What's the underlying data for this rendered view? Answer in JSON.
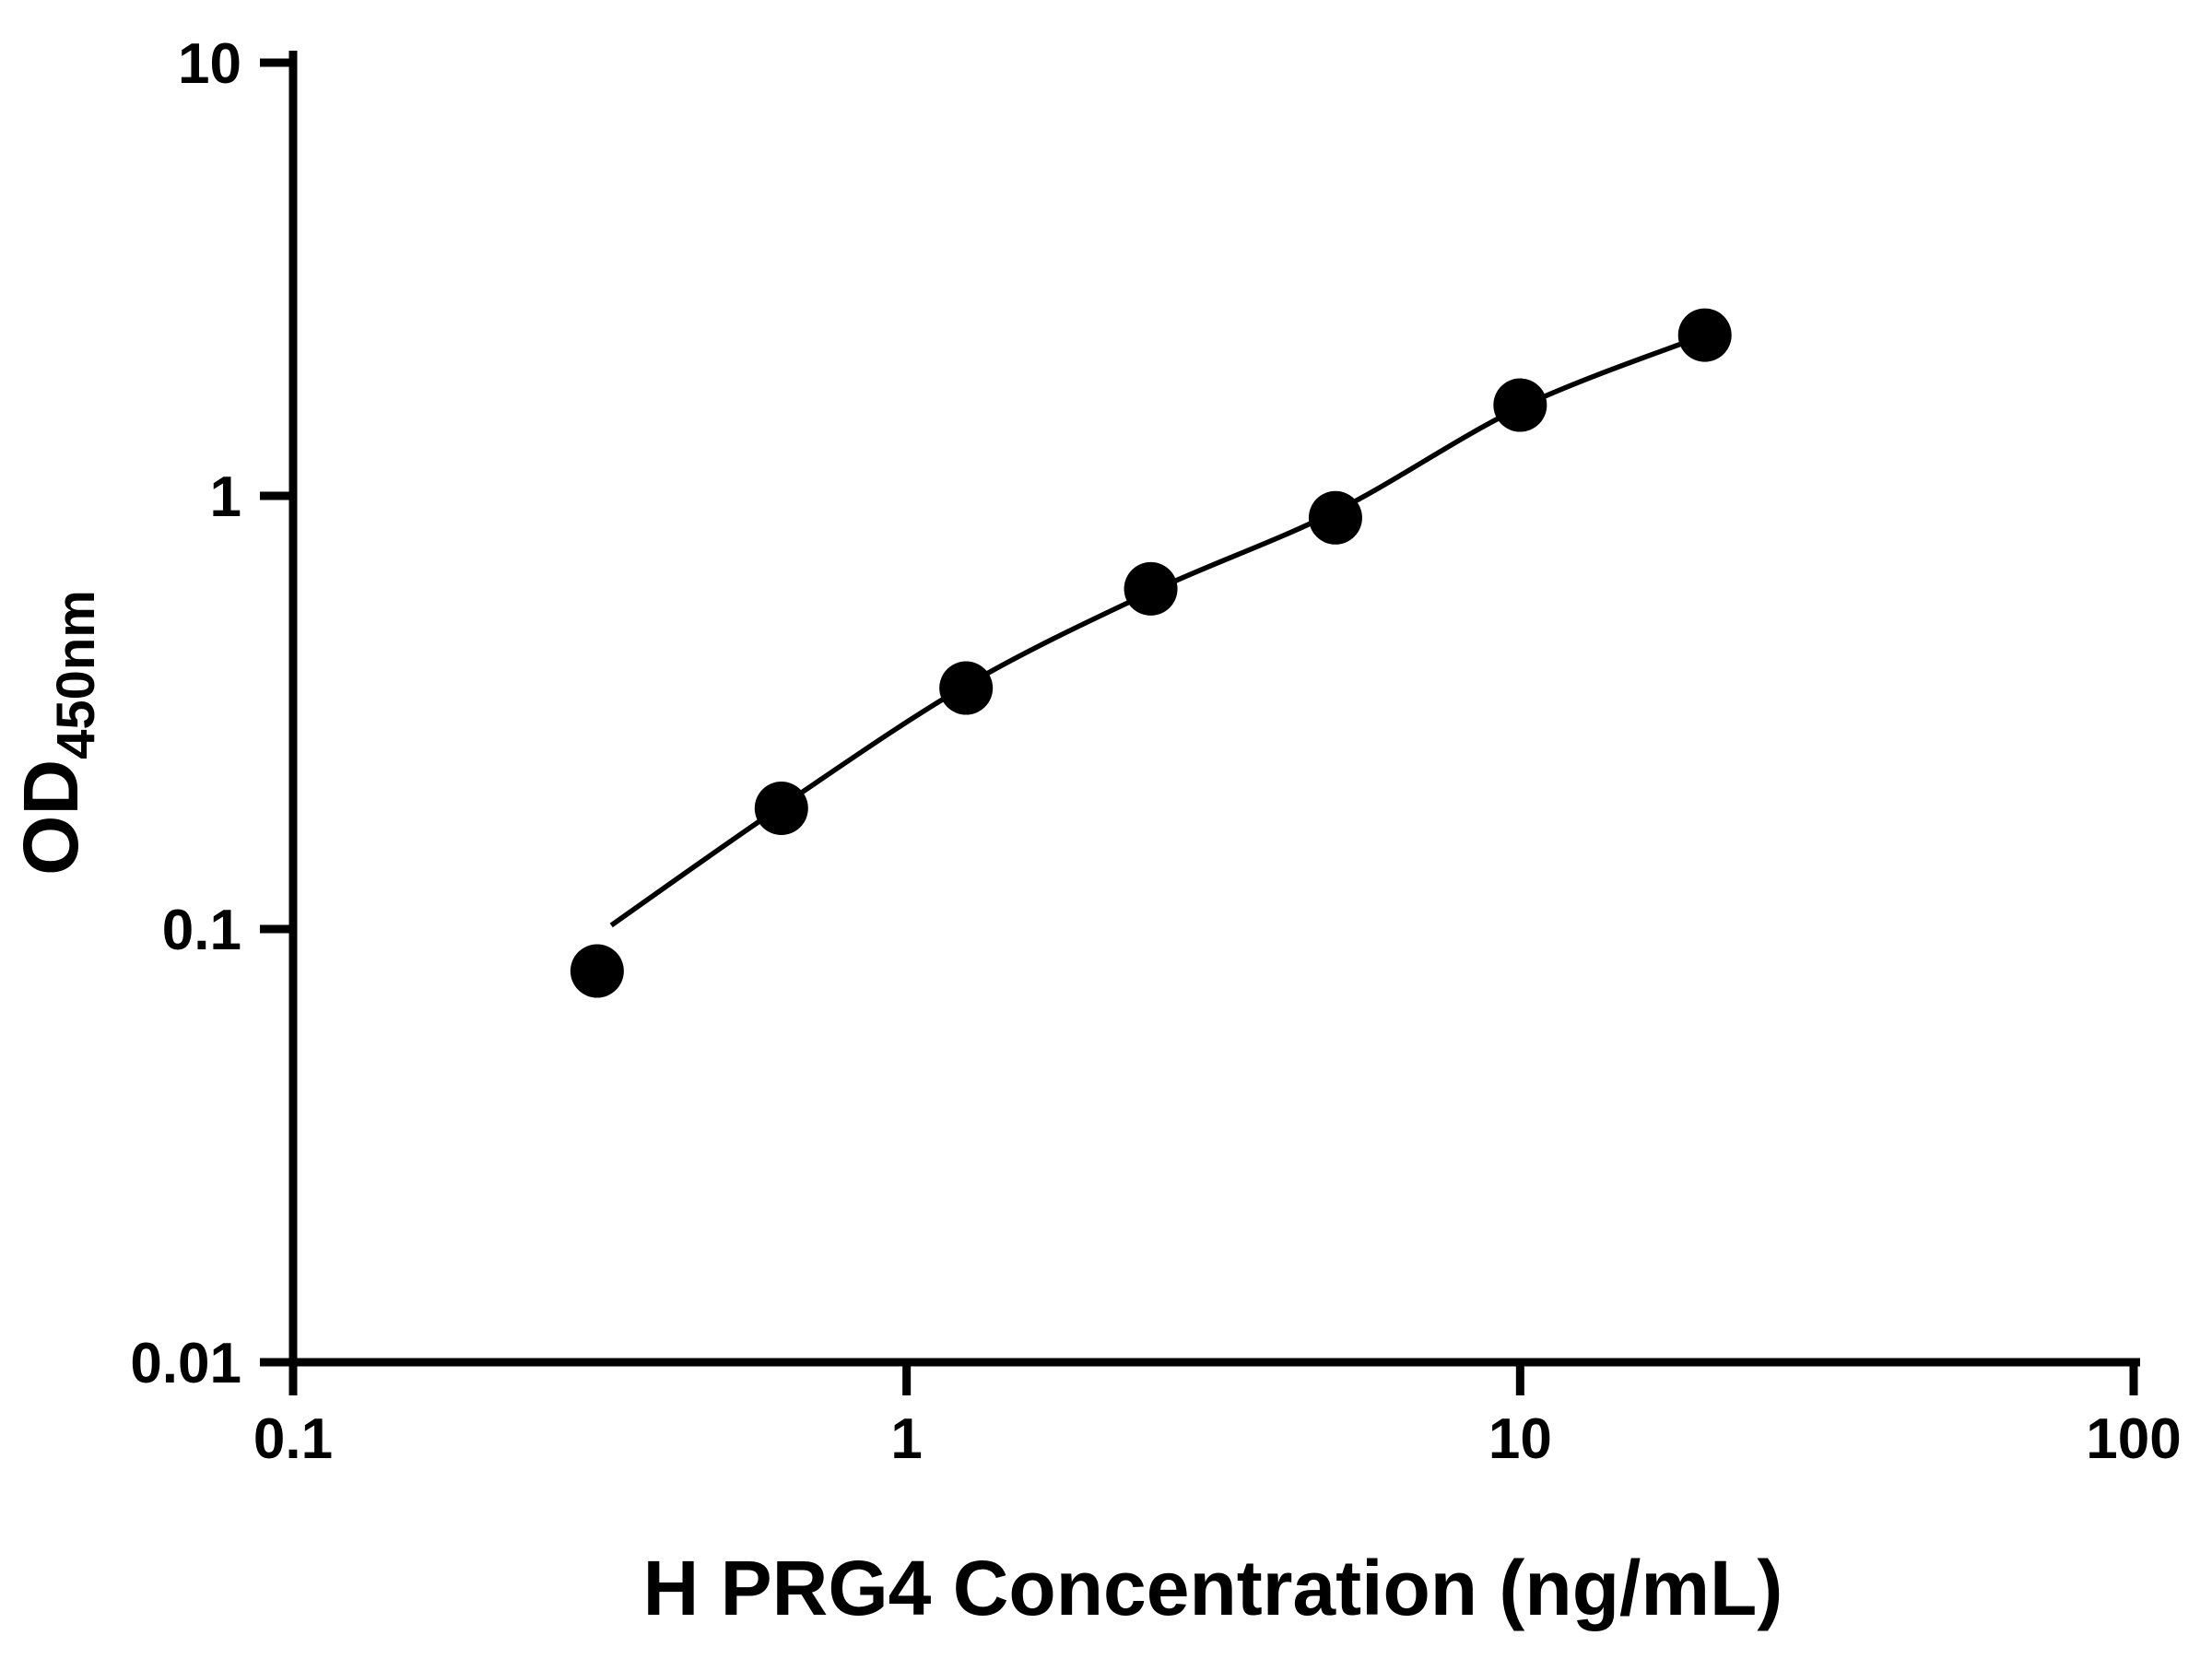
{
  "chart_data": {
    "type": "scatter",
    "title": "",
    "xlabel": "H PRG4 Concentration (ng/mL)",
    "ylabel_main": "OD",
    "ylabel_sub": "450nm",
    "x_scale": "log",
    "y_scale": "log",
    "xlim": [
      0.1,
      100
    ],
    "ylim": [
      0.01,
      10
    ],
    "grid": false,
    "legend": "none",
    "x_ticks": [
      {
        "value": 0.1,
        "label": "0.1"
      },
      {
        "value": 1,
        "label": "1"
      },
      {
        "value": 10,
        "label": "10"
      },
      {
        "value": 100,
        "label": "100"
      }
    ],
    "y_ticks": [
      {
        "value": 0.01,
        "label": "0.01"
      },
      {
        "value": 0.1,
        "label": "0.1"
      },
      {
        "value": 1,
        "label": "1"
      },
      {
        "value": 10,
        "label": "10"
      }
    ],
    "points": [
      {
        "x": 0.313,
        "y": 0.08
      },
      {
        "x": 0.625,
        "y": 0.19
      },
      {
        "x": 1.25,
        "y": 0.36
      },
      {
        "x": 2.5,
        "y": 0.61
      },
      {
        "x": 5,
        "y": 0.89
      },
      {
        "x": 10,
        "y": 1.62
      },
      {
        "x": 20,
        "y": 2.35
      }
    ],
    "fit_curve": [
      [
        0.33,
        0.102
      ],
      [
        0.625,
        0.192
      ],
      [
        1.25,
        0.365
      ],
      [
        2.5,
        0.6
      ],
      [
        5,
        0.92
      ],
      [
        10,
        1.6
      ],
      [
        20,
        2.35
      ]
    ],
    "marker_color": "#000000",
    "line_color": "#000000",
    "background_color": "#ffffff"
  }
}
